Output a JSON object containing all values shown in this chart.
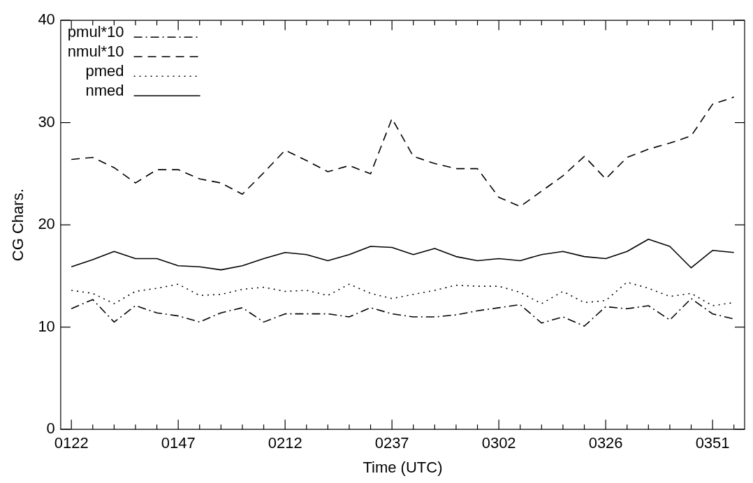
{
  "chart_data": {
    "type": "line",
    "xlabel": "Time (UTC)",
    "ylabel": "CG Chars.",
    "categories": [
      "0122",
      null,
      null,
      null,
      null,
      "0147",
      null,
      null,
      null,
      null,
      "0212",
      null,
      null,
      null,
      null,
      "0237",
      null,
      null,
      null,
      null,
      "0302",
      null,
      null,
      null,
      null,
      "0326",
      null,
      null,
      null,
      null,
      "0351",
      null
    ],
    "series": [
      {
        "name": "pmul*10",
        "color": "#000000",
        "line_style": "dashdot",
        "values": [
          11.8,
          12.7,
          10.5,
          12.1,
          11.4,
          11.1,
          10.5,
          11.4,
          11.9,
          10.5,
          11.3,
          11.3,
          11.3,
          11.0,
          11.9,
          11.3,
          11.0,
          11.0,
          11.2,
          11.6,
          11.9,
          12.2,
          10.4,
          11.0,
          10.1,
          12.0,
          11.8,
          12.1,
          10.7,
          12.8,
          11.3,
          10.8
        ]
      },
      {
        "name": "nmul*10",
        "color": "#000000",
        "line_style": "dashed",
        "values": [
          26.4,
          26.6,
          25.6,
          24.1,
          25.4,
          25.4,
          24.5,
          24.1,
          23.0,
          25.1,
          27.3,
          26.3,
          25.2,
          25.8,
          25.0,
          30.4,
          26.7,
          26.0,
          25.5,
          25.5,
          22.7,
          21.8,
          23.3,
          24.8,
          26.7,
          24.5,
          26.6,
          27.4,
          28.0,
          28.7,
          31.8,
          32.5
        ]
      },
      {
        "name": "pmed",
        "color": "#000000",
        "line_style": "dotted",
        "values": [
          13.6,
          13.3,
          12.3,
          13.5,
          13.8,
          14.2,
          13.1,
          13.2,
          13.7,
          13.9,
          13.5,
          13.6,
          13.1,
          14.2,
          13.3,
          12.8,
          13.2,
          13.6,
          14.1,
          14.0,
          14.0,
          13.4,
          12.3,
          13.5,
          12.4,
          12.6,
          14.4,
          13.8,
          13.0,
          13.3,
          12.1,
          12.4
        ]
      },
      {
        "name": "nmed",
        "color": "#000000",
        "line_style": "solid",
        "values": [
          15.9,
          16.6,
          17.4,
          16.7,
          16.7,
          16.0,
          15.9,
          15.6,
          16.0,
          16.7,
          17.3,
          17.1,
          16.5,
          17.1,
          17.9,
          17.8,
          17.1,
          17.7,
          16.9,
          16.5,
          16.7,
          16.5,
          17.1,
          17.4,
          16.9,
          16.7,
          17.4,
          18.6,
          17.9,
          15.8,
          17.5,
          17.3
        ]
      }
    ],
    "ylim": [
      0,
      40
    ],
    "yticks": [
      0,
      10,
      20,
      30,
      40
    ],
    "grid": false,
    "legend": "top left",
    "marker": "none"
  }
}
